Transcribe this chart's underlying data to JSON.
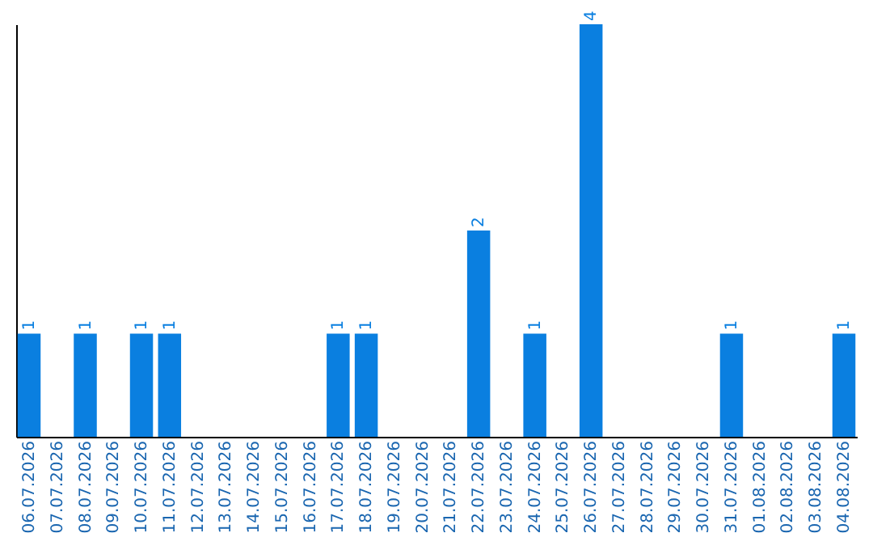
{
  "chart_data": {
    "type": "bar",
    "categories": [
      "06.07.2026",
      "07.07.2026",
      "08.07.2026",
      "09.07.2026",
      "10.07.2026",
      "11.07.2026",
      "12.07.2026",
      "13.07.2026",
      "14.07.2026",
      "15.07.2026",
      "16.07.2026",
      "17.07.2026",
      "18.07.2026",
      "19.07.2026",
      "20.07.2026",
      "21.07.2026",
      "22.07.2026",
      "23.07.2026",
      "24.07.2026",
      "25.07.2026",
      "26.07.2026",
      "27.07.2026",
      "28.07.2026",
      "29.07.2026",
      "30.07.2026",
      "31.07.2026",
      "01.08.2026",
      "02.08.2026",
      "03.08.2026",
      "04.08.2026"
    ],
    "values": [
      1,
      0,
      1,
      0,
      1,
      1,
      0,
      0,
      0,
      0,
      0,
      1,
      1,
      0,
      0,
      0,
      2,
      0,
      1,
      0,
      4,
      0,
      0,
      0,
      0,
      1,
      0,
      0,
      0,
      1
    ],
    "value_labels": [
      "1",
      null,
      "1",
      null,
      "1",
      "1",
      null,
      null,
      null,
      null,
      null,
      "1",
      "1",
      null,
      null,
      null,
      "2",
      null,
      "1",
      null,
      "4",
      null,
      null,
      null,
      null,
      "1",
      null,
      null,
      null,
      "1"
    ],
    "color": "#0a7fe0",
    "tick_labels": "x",
    "grid": false
  }
}
